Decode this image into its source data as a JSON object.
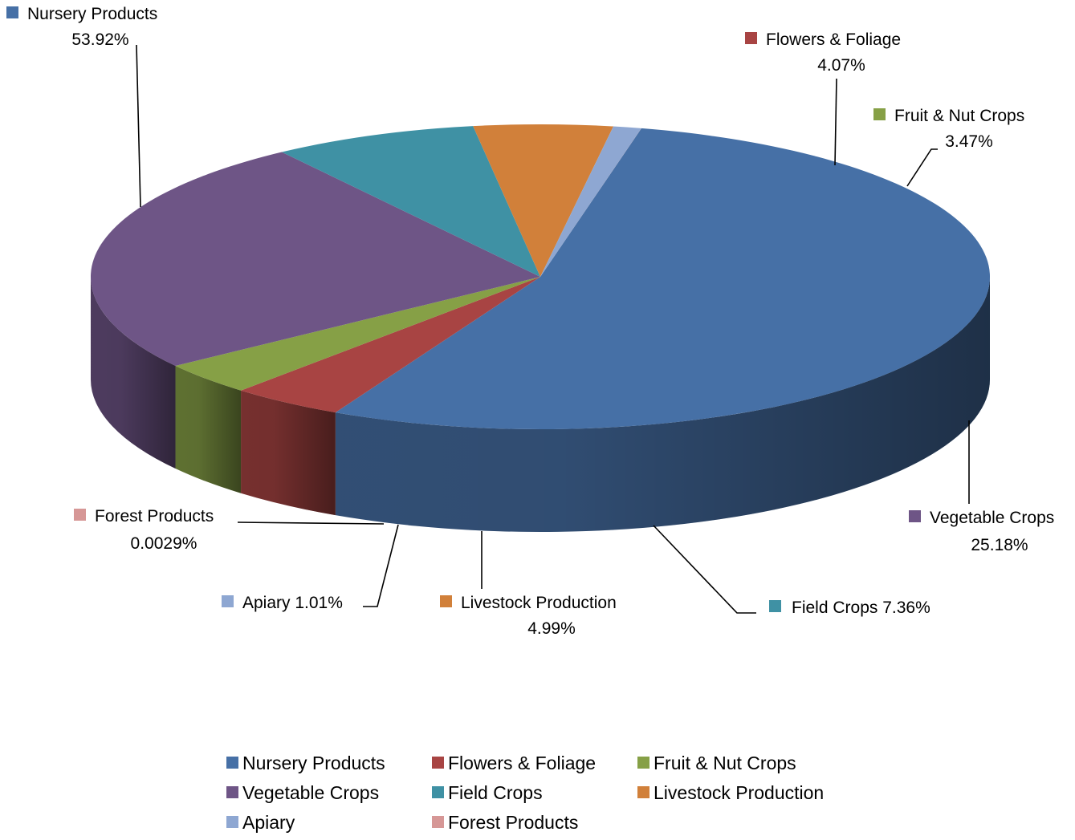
{
  "chart_data": {
    "type": "pie",
    "style": "3d-exploded-tilt",
    "legend_position": "bottom",
    "series": [
      {
        "name": "Nursery Products",
        "value": 53.92,
        "label": "53.92%",
        "color": "#4670A6"
      },
      {
        "name": "Flowers & Foliage",
        "value": 4.07,
        "label": "4.07%",
        "color": "#A84443"
      },
      {
        "name": "Fruit & Nut Crops",
        "value": 3.47,
        "label": "3.47%",
        "color": "#86A046"
      },
      {
        "name": "Vegetable Crops",
        "value": 25.18,
        "label": "25.18%",
        "color": "#6E5586"
      },
      {
        "name": "Field Crops",
        "value": 7.36,
        "label": "7.36%",
        "color": "#3F91A4"
      },
      {
        "name": "Livestock Production",
        "value": 4.99,
        "label": "4.99%",
        "color": "#D1803A"
      },
      {
        "name": "Apiary",
        "value": 1.01,
        "label": "1.01%",
        "color": "#8EA7D2"
      },
      {
        "name": "Forest Products",
        "value": 0.0029,
        "label": "0.0029%",
        "color": "#D69796"
      }
    ]
  }
}
